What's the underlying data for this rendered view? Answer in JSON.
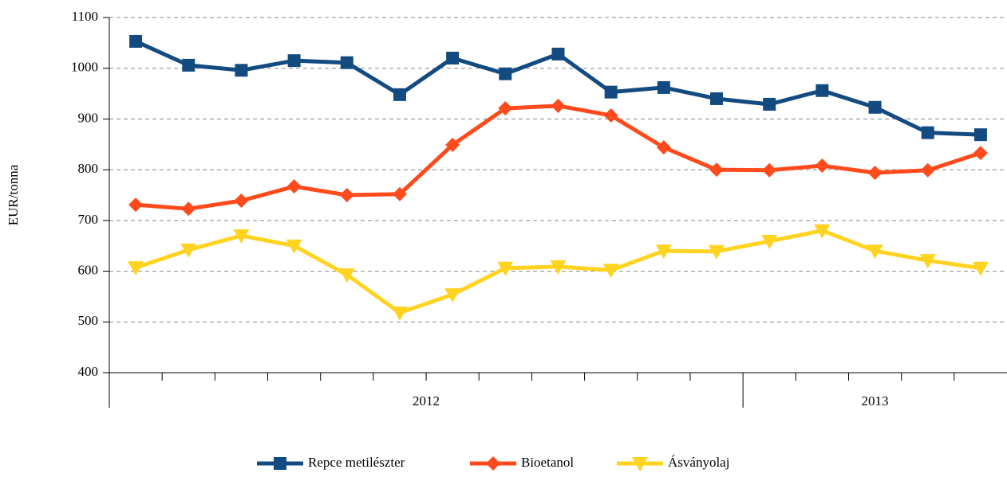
{
  "chart_data": {
    "type": "line",
    "y_label": "EUR/tonna",
    "categories": [
      null,
      null,
      null,
      null,
      null,
      null,
      null,
      null,
      null,
      null,
      null,
      null,
      null,
      null,
      null,
      null,
      null
    ],
    "category_groups": [
      {
        "label": "2012",
        "span": 12
      },
      {
        "label": "2013",
        "span": 5
      }
    ],
    "series": [
      {
        "name": "Repce metilészter",
        "color": "#134b80",
        "marker": "square",
        "values": [
          1053,
          1006,
          996,
          1015,
          1011,
          948,
          1020,
          989,
          1028,
          953,
          962,
          940,
          929,
          956,
          923,
          873,
          869
        ]
      },
      {
        "name": "Bioetanol",
        "color": "#ff4a1c",
        "marker": "diamond",
        "values": [
          731,
          723,
          739,
          767,
          750,
          752,
          849,
          921,
          926,
          907,
          844,
          800,
          799,
          808,
          794,
          799,
          833
        ]
      },
      {
        "name": "Ásványolaj",
        "color": "#ffd320",
        "marker": "triangle-down",
        "values": [
          607,
          642,
          670,
          650,
          593,
          518,
          554,
          606,
          609,
          602,
          640,
          639,
          659,
          680,
          640,
          621,
          606
        ]
      }
    ],
    "ylim": [
      400,
      1100
    ],
    "yticks": [
      400,
      500,
      600,
      700,
      800,
      900,
      1000,
      1100
    ],
    "grid": true,
    "legend": "bottom"
  }
}
